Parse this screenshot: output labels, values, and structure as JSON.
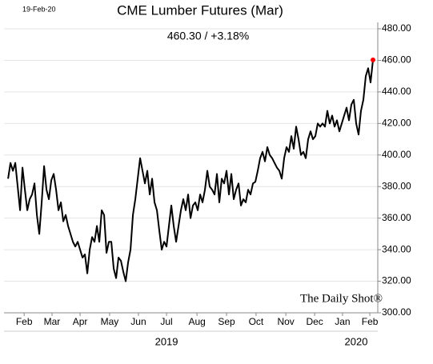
{
  "chart_data": {
    "type": "line",
    "title": "CME Lumber Futures (Mar)",
    "subtitle": "460.30  /  +3.18%",
    "date_label": "19-Feb-20",
    "watermark": "The Daily Shot®",
    "years": [
      {
        "value": 66,
        "label": "2019"
      },
      {
        "value": 145,
        "label": "2020"
      }
    ],
    "color": "#000000",
    "last_point_color": "#ff0000",
    "grid": true,
    "xlim": [
      -1.7,
      154
    ],
    "xticks": [
      {
        "value": 6.7,
        "label": "Feb"
      },
      {
        "value": 18.3,
        "label": "Mar"
      },
      {
        "value": 30,
        "label": "Apr"
      },
      {
        "value": 42.3,
        "label": "May"
      },
      {
        "value": 54.3,
        "label": "Jun"
      },
      {
        "value": 66,
        "label": "Jul"
      },
      {
        "value": 78.7,
        "label": "Aug"
      },
      {
        "value": 91,
        "label": "Sep"
      },
      {
        "value": 103.3,
        "label": "Oct"
      },
      {
        "value": 115.7,
        "label": "Nov"
      },
      {
        "value": 127.7,
        "label": "Dec"
      },
      {
        "value": 139.3,
        "label": "Jan"
      },
      {
        "value": 150.7,
        "label": "Feb"
      }
    ],
    "ylim": [
      300,
      480
    ],
    "yticks": [
      {
        "value": 300,
        "label": "300.00"
      },
      {
        "value": 320,
        "label": "320.00"
      },
      {
        "value": 340,
        "label": "340.00"
      },
      {
        "value": 360,
        "label": "360.00"
      },
      {
        "value": 380,
        "label": "380.00"
      },
      {
        "value": 400,
        "label": "400.00"
      },
      {
        "value": 420,
        "label": "420.00"
      },
      {
        "value": 440,
        "label": "440.00"
      },
      {
        "value": 460,
        "label": "460.00"
      },
      {
        "value": 480,
        "label": "480.00"
      }
    ],
    "values": [
      385,
      395,
      390,
      395,
      380,
      365,
      392,
      378,
      365,
      372,
      375,
      382,
      362,
      350,
      370,
      393,
      378,
      372,
      384,
      388,
      378,
      365,
      370,
      358,
      362,
      355,
      350,
      345,
      342,
      345,
      340,
      335,
      337,
      325,
      340,
      348,
      345,
      355,
      345,
      365,
      362,
      338,
      345,
      345,
      328,
      322,
      335,
      333,
      326,
      320,
      332,
      340,
      362,
      372,
      385,
      398,
      390,
      382,
      390,
      375,
      385,
      370,
      365,
      352,
      340,
      345,
      342,
      355,
      368,
      355,
      345,
      355,
      365,
      372,
      365,
      375,
      360,
      368,
      370,
      365,
      375,
      370,
      378,
      390,
      380,
      378,
      375,
      388,
      370,
      385,
      382,
      390,
      375,
      388,
      372,
      378,
      382,
      368,
      372,
      370,
      378,
      375,
      382,
      383,
      390,
      398,
      402,
      396,
      405,
      400,
      398,
      395,
      392,
      390,
      385,
      398,
      405,
      402,
      412,
      404,
      418,
      410,
      400,
      402,
      398,
      410,
      415,
      410,
      412,
      420,
      418,
      420,
      418,
      428,
      420,
      425,
      418,
      422,
      415,
      420,
      425,
      430,
      422,
      432,
      435,
      420,
      413,
      428,
      435,
      450,
      455,
      446,
      460.3
    ]
  }
}
